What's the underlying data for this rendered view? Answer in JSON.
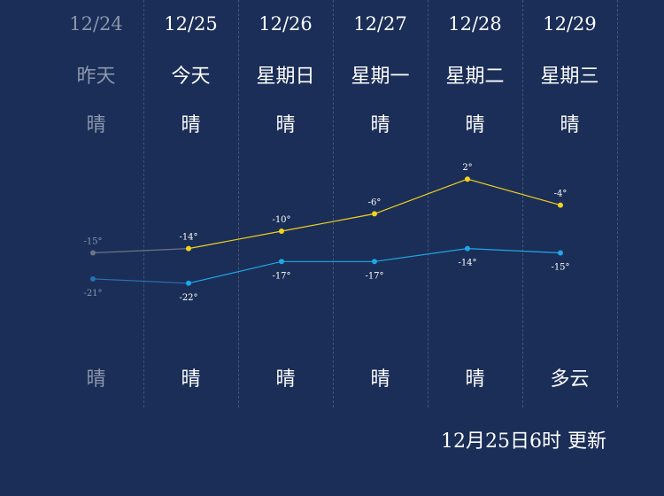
{
  "days": [
    {
      "date": "12/24",
      "label": "昨天",
      "day_weather": "晴",
      "night_weather": "晴",
      "past": true
    },
    {
      "date": "12/25",
      "label": "今天",
      "day_weather": "晴",
      "night_weather": "晴",
      "past": false
    },
    {
      "date": "12/26",
      "label": "星期日",
      "day_weather": "晴",
      "night_weather": "晴",
      "past": false
    },
    {
      "date": "12/27",
      "label": "星期一",
      "day_weather": "晴",
      "night_weather": "晴",
      "past": false
    },
    {
      "date": "12/28",
      "label": "星期二",
      "day_weather": "晴",
      "night_weather": "晴",
      "past": false
    },
    {
      "date": "12/29",
      "label": "星期三",
      "day_weather": "晴",
      "night_weather": "多云",
      "past": false
    }
  ],
  "chart_data": {
    "type": "line",
    "x": [
      "12/24",
      "12/25",
      "12/26",
      "12/27",
      "12/28",
      "12/29"
    ],
    "series": [
      {
        "values": [
          -15,
          -14,
          -10,
          -6,
          2,
          -4
        ],
        "labels": [
          "-15°",
          "-14°",
          "-10°",
          "-6°",
          "2°",
          "-4°"
        ],
        "color": "#f2d21e"
      },
      {
        "values": [
          -21,
          -22,
          -17,
          -17,
          -14,
          -15
        ],
        "labels": [
          "-21°",
          "-22°",
          "-17°",
          "-17°",
          "-14°",
          "-15°"
        ],
        "color": "#1fa7e8"
      }
    ],
    "past_color": "#6b7585",
    "past_low_color": "#2a6fb0"
  },
  "update_text": "12月25日6时 更新"
}
